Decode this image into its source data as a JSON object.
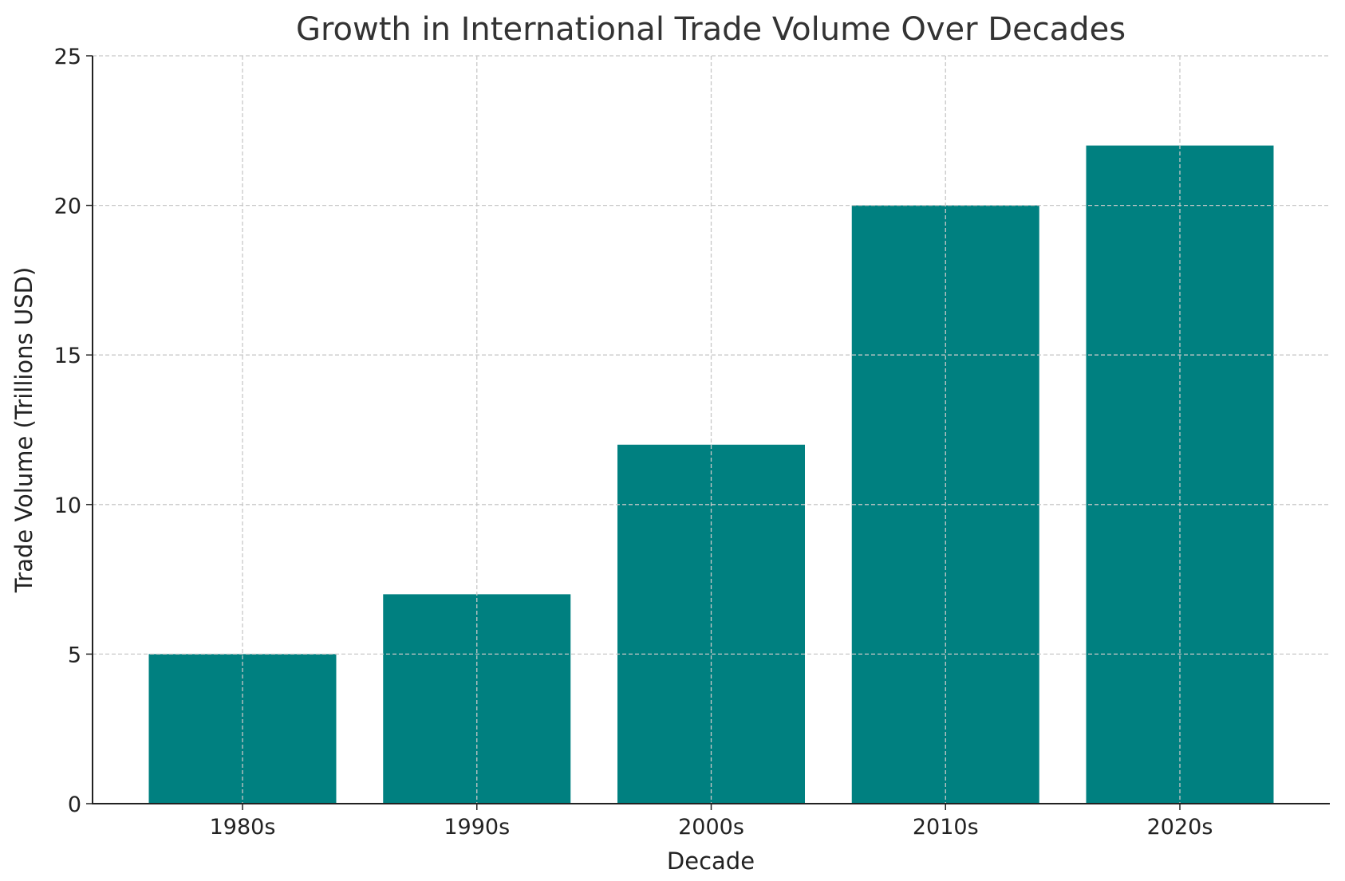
{
  "chart_data": {
    "type": "bar",
    "title": "Growth in International Trade Volume Over Decades",
    "xlabel": "Decade",
    "ylabel": "Trade Volume (Trillions USD)",
    "categories": [
      "1980s",
      "1990s",
      "2000s",
      "2010s",
      "2020s"
    ],
    "values": [
      5,
      7,
      12,
      20,
      22
    ],
    "ylim": [
      0,
      25
    ],
    "yticks": [
      0,
      5,
      10,
      15,
      20,
      25
    ],
    "grid": true,
    "bar_color": "#008080"
  }
}
